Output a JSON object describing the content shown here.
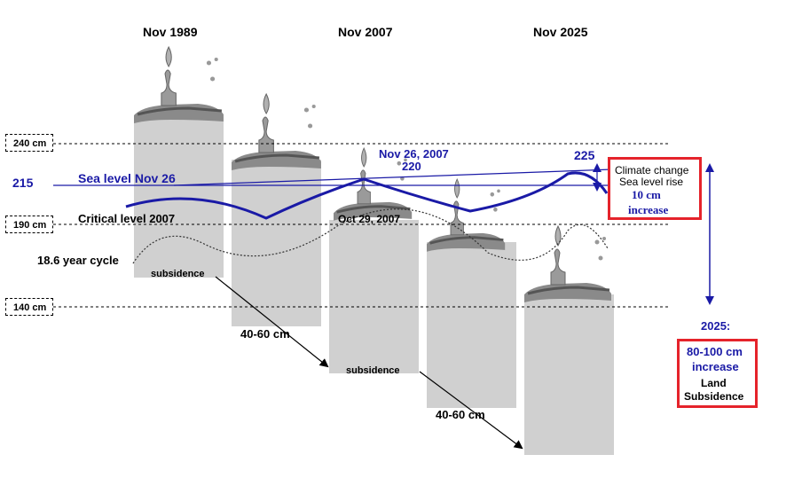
{
  "years": [
    "Nov 1989",
    "Nov 2007",
    "Nov 2025"
  ],
  "levels": {
    "cm240": "240 cm",
    "cm190": "190 cm",
    "cm140": "140 cm"
  },
  "sea_level": {
    "value": "215",
    "label": "Sea level Nov 26"
  },
  "critical": {
    "label": "Critical level 2007",
    "oct_label": "Oct 29, 2007"
  },
  "peak": {
    "date": "Nov 26, 2007",
    "value_220": "220",
    "value_225": "225"
  },
  "cycle_label": "18.6 year cycle",
  "subsidence_labels": [
    "subsidence",
    "subsidence"
  ],
  "drop_labels": [
    "40-60 cm",
    "40-60 cm"
  ],
  "climate_box": {
    "line1": "Climate change",
    "line2": "Sea level rise",
    "line3": "10 cm",
    "line4": "increase"
  },
  "subsidence_box": {
    "year": "2025:",
    "line1": "80-100 cm",
    "line2": "increase",
    "line3": "Land",
    "line4": "Subsidence"
  },
  "colors": {
    "navy": "#1a1aa6",
    "red_box": "#e5232b",
    "column_gray": "#d0d0d0",
    "dark_gray": "#707070"
  }
}
